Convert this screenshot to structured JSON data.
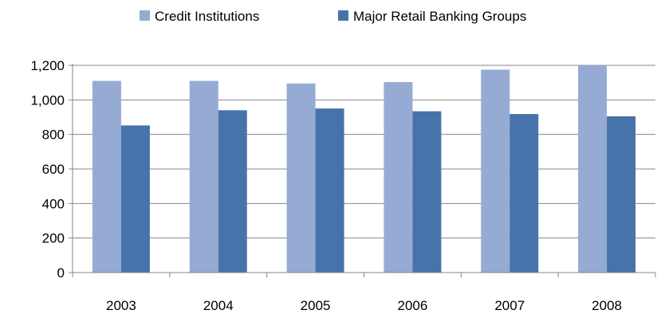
{
  "chart_data": {
    "type": "bar",
    "categories": [
      "2003",
      "2004",
      "2005",
      "2006",
      "2007",
      "2008"
    ],
    "series": [
      {
        "name": "Credit Institutions",
        "color": "#95abd4",
        "values": [
          1110,
          1110,
          1095,
          1103,
          1175,
          1200
        ]
      },
      {
        "name": "Major Retail Banking Groups",
        "color": "#4773aa",
        "values": [
          852,
          940,
          950,
          934,
          918,
          905
        ]
      }
    ],
    "yticks": [
      0,
      200,
      400,
      600,
      800,
      1000,
      1200
    ],
    "ytick_labels": [
      "0",
      "200",
      "400",
      "600",
      "800",
      "1,000",
      "1,200"
    ],
    "ylim": [
      0,
      1200
    ],
    "grid": true,
    "legend_position": "top-center",
    "title": "",
    "xlabel": "",
    "ylabel": ""
  }
}
